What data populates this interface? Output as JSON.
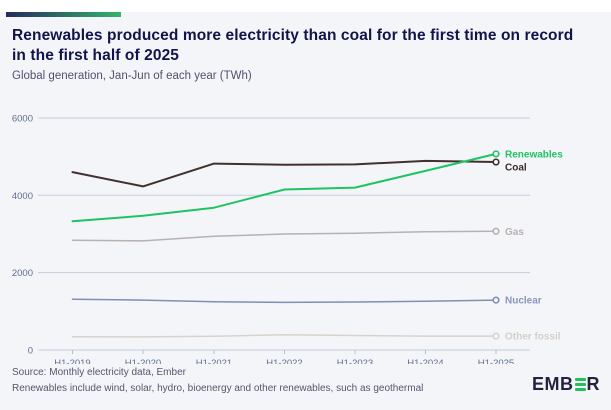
{
  "header": {
    "title_line1": "Renewables produced more electricity than coal for the first time on record",
    "title_line2": "in the first half of 2025",
    "subtitle": "Global generation, Jan-Jun of each year (TWh)"
  },
  "chart_data": {
    "type": "line",
    "categories": [
      "H1-2019",
      "H1-2020",
      "H1-2021",
      "H1-2022",
      "H1-2023",
      "H1-2024",
      "H1-2025"
    ],
    "series": [
      {
        "name": "Renewables",
        "color": "#1ec463",
        "label_color": "#1ec463",
        "width": 2,
        "values": [
          3330,
          3470,
          3680,
          4150,
          4200,
          4630,
          5070
        ]
      },
      {
        "name": "Coal",
        "color": "#42302e",
        "label_color": "#3a2b29",
        "width": 2,
        "values": [
          4600,
          4230,
          4820,
          4790,
          4800,
          4890,
          4860
        ]
      },
      {
        "name": "Gas",
        "color": "#b7b1b0",
        "label_color": "#b7b1b0",
        "width": 1.5,
        "values": [
          2840,
          2820,
          2940,
          3000,
          3020,
          3060,
          3070
        ]
      },
      {
        "name": "Nuclear",
        "color": "#7e8fb3",
        "label_color": "#8a97bc",
        "width": 1.5,
        "values": [
          1310,
          1290,
          1250,
          1230,
          1240,
          1260,
          1290
        ]
      },
      {
        "name": "Other fossil",
        "color": "#d8d2cc",
        "label_color": "#d5cfc9",
        "width": 1.5,
        "values": [
          345,
          340,
          355,
          395,
          375,
          360,
          360
        ]
      }
    ],
    "title": "Global generation, Jan-Jun of each year (TWh)",
    "xlabel": "",
    "ylabel": "",
    "ylim": [
      0,
      6000
    ],
    "y_ticks": [
      0,
      2000,
      4000,
      6000
    ],
    "grid": true,
    "legend_position": "line-end-labels"
  },
  "footer": {
    "source": "Source: Monthly electricity data, Ember",
    "note": "Renewables include wind, solar, hydro, bioenergy and other renewables, such as geothermal"
  },
  "logo": {
    "text_left": "EMB",
    "text_right": "R",
    "icon": "three-green-bars-icon"
  },
  "colors": {
    "background": "#f4f5f9",
    "accent_bar_start": "#232b60",
    "accent_bar_end": "#35b469",
    "title": "#13134b",
    "grid": "#c8cddd",
    "tick_label": "#606d90"
  }
}
